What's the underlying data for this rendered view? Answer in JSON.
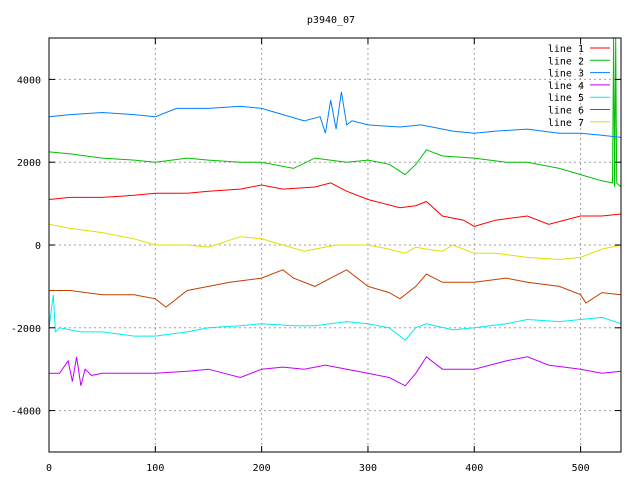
{
  "chart_data": {
    "type": "line",
    "title": "p3940_07",
    "xlabel": "",
    "ylabel": "",
    "xlim": [
      0,
      538
    ],
    "ylim": [
      -5000,
      5000
    ],
    "grid": true,
    "legend_position": "top-right",
    "xticks": [
      0,
      100,
      200,
      300,
      400,
      500
    ],
    "yticks": [
      -4000,
      -2000,
      0,
      2000,
      4000
    ],
    "series": [
      {
        "name": "line 1",
        "color": "#ff0000",
        "x": [
          0,
          20,
          50,
          80,
          100,
          130,
          150,
          180,
          200,
          220,
          250,
          265,
          280,
          300,
          330,
          345,
          355,
          370,
          390,
          400,
          420,
          450,
          470,
          500,
          520,
          538
        ],
        "y": [
          1100,
          1150,
          1150,
          1200,
          1250,
          1250,
          1300,
          1350,
          1450,
          1350,
          1400,
          1500,
          1300,
          1100,
          900,
          950,
          1050,
          700,
          600,
          450,
          600,
          700,
          500,
          700,
          700,
          750
        ]
      },
      {
        "name": "line 2",
        "color": "#00c000",
        "x": [
          0,
          20,
          50,
          80,
          100,
          130,
          150,
          180,
          200,
          230,
          250,
          280,
          300,
          320,
          335,
          345,
          355,
          370,
          400,
          430,
          450,
          480,
          500,
          520,
          530,
          531,
          532,
          533,
          534,
          538
        ],
        "y": [
          2250,
          2200,
          2100,
          2050,
          2000,
          2100,
          2050,
          2000,
          2000,
          1850,
          2100,
          2000,
          2050,
          1950,
          1700,
          1950,
          2300,
          2150,
          2100,
          2000,
          2000,
          1850,
          1700,
          1550,
          1500,
          5000,
          1400,
          5000,
          1500,
          1400
        ]
      },
      {
        "name": "line 3",
        "color": "#0080ff",
        "x": [
          0,
          20,
          50,
          80,
          100,
          120,
          150,
          180,
          200,
          220,
          240,
          255,
          260,
          265,
          270,
          275,
          280,
          285,
          300,
          330,
          350,
          380,
          400,
          420,
          450,
          480,
          500,
          520,
          538
        ],
        "y": [
          3100,
          3150,
          3200,
          3150,
          3100,
          3300,
          3300,
          3350,
          3300,
          3150,
          3000,
          3100,
          2700,
          3500,
          2800,
          3700,
          2900,
          3000,
          2900,
          2850,
          2900,
          2750,
          2700,
          2750,
          2800,
          2700,
          2700,
          2650,
          2600
        ]
      },
      {
        "name": "line 4",
        "color": "#c000ff",
        "x": [
          0,
          10,
          18,
          22,
          26,
          30,
          34,
          40,
          50,
          80,
          100,
          130,
          150,
          180,
          200,
          220,
          240,
          260,
          280,
          300,
          320,
          335,
          345,
          355,
          370,
          400,
          430,
          450,
          470,
          500,
          520,
          538
        ],
        "y": [
          -3100,
          -3100,
          -2800,
          -3300,
          -2700,
          -3400,
          -3000,
          -3150,
          -3100,
          -3100,
          -3100,
          -3050,
          -3000,
          -3200,
          -3000,
          -2950,
          -3000,
          -2900,
          -3000,
          -3100,
          -3200,
          -3400,
          -3100,
          -2700,
          -3000,
          -3000,
          -2800,
          -2700,
          -2900,
          -3000,
          -3100,
          -3050
        ]
      },
      {
        "name": "line 5",
        "color": "#00eeee",
        "x": [
          0,
          4,
          6,
          10,
          30,
          50,
          80,
          100,
          130,
          150,
          180,
          200,
          230,
          250,
          280,
          300,
          320,
          335,
          345,
          355,
          380,
          400,
          430,
          450,
          480,
          500,
          520,
          538
        ],
        "y": [
          -2000,
          -1200,
          -2100,
          -2000,
          -2100,
          -2100,
          -2200,
          -2200,
          -2100,
          -2000,
          -1950,
          -1900,
          -1950,
          -1950,
          -1850,
          -1900,
          -2000,
          -2300,
          -2000,
          -1900,
          -2050,
          -2000,
          -1900,
          -1800,
          -1850,
          -1800,
          -1750,
          -1900
        ]
      },
      {
        "name": "line 6",
        "color": "#c04000",
        "x": [
          0,
          20,
          50,
          80,
          100,
          110,
          130,
          150,
          170,
          200,
          220,
          230,
          250,
          265,
          280,
          300,
          320,
          330,
          345,
          355,
          370,
          400,
          430,
          450,
          480,
          500,
          505,
          520,
          538
        ],
        "y": [
          -1100,
          -1100,
          -1200,
          -1200,
          -1300,
          -1500,
          -1100,
          -1000,
          -900,
          -800,
          -600,
          -800,
          -1000,
          -800,
          -600,
          -1000,
          -1150,
          -1300,
          -1000,
          -700,
          -900,
          -900,
          -800,
          -900,
          -1000,
          -1200,
          -1400,
          -1150,
          -1200
        ]
      },
      {
        "name": "line 7",
        "color": "#e0e000",
        "x": [
          0,
          20,
          50,
          80,
          100,
          130,
          150,
          180,
          200,
          220,
          240,
          250,
          270,
          300,
          320,
          335,
          345,
          355,
          370,
          380,
          400,
          420,
          450,
          480,
          500,
          520,
          538
        ],
        "y": [
          500,
          400,
          300,
          150,
          0,
          0,
          -50,
          200,
          150,
          0,
          -150,
          -100,
          0,
          0,
          -100,
          -200,
          -50,
          -100,
          -150,
          0,
          -200,
          -200,
          -300,
          -350,
          -300,
          -100,
          0
        ]
      }
    ]
  }
}
